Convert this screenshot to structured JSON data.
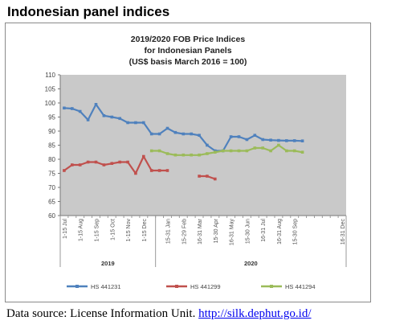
{
  "heading": "Indonesian panel indices",
  "source": {
    "prefix": "Data source: License Information Unit. ",
    "link_text": "http://silk.dephut.go.id/"
  },
  "chart_data": {
    "type": "line",
    "title": [
      "2019/2020 FOB Price Indices",
      "for Indonesian Panels",
      "(US$ basis March 2016 = 100)"
    ],
    "ylim": [
      60,
      110
    ],
    "yticks": [
      60,
      65,
      70,
      75,
      80,
      85,
      90,
      95,
      100,
      105,
      110
    ],
    "grid": false,
    "legend_position": "bottom",
    "plot_background": "#c9c9c9",
    "categories": [
      "1-15 Jul",
      "16-31 Jul",
      "1-15 Aug",
      "16-31 Aug",
      "1-15 Sep",
      "16-30 Sep",
      "1-15 Oct",
      "16-31 Oct",
      "1-15 Nov",
      "16-30 Nov",
      "1-15 Dec",
      "16-31 Dec",
      "1-15 Jan",
      "16-31 Jan",
      "1-15 Feb",
      "16-29 Feb",
      "1-15 Mar",
      "16-31 Mar",
      "1-15 Apr",
      "16-30 Apr",
      "1-15 May",
      "16-31 May",
      "1-15 Jun",
      "16-30 Jun",
      "1-15 Jul",
      "16-31 Jul",
      "1-15 Aug",
      "16-31 Aug",
      "1-15 Sep",
      "16-30 Sep",
      "1-15 Oct",
      "16-31 Oct",
      "1-15 Nov",
      "16-30 Nov",
      "1-15 Dec",
      "16-31 Dec"
    ],
    "tick_labels": [
      "1-15 Jul",
      "1-15 Aug",
      "1-15 Sep",
      "1-15 Oct",
      "1-15 Nov",
      "1-15 Dec",
      "15-31 Jan",
      "15-29 Feb",
      "16-31 Mar",
      "15-30 Apr",
      "16-31 May",
      "15-30 Jun",
      "16-31 Jul",
      "16-31 Aug",
      "15-30 Sep",
      "16-31 Dec"
    ],
    "tick_label_index": [
      0,
      2,
      4,
      6,
      8,
      10,
      13,
      15,
      17,
      19,
      21,
      23,
      25,
      27,
      29,
      35
    ],
    "year_labels": [
      {
        "text": "2019",
        "from": 0,
        "to": 11
      },
      {
        "text": "2020",
        "from": 12,
        "to": 35
      }
    ],
    "series": [
      {
        "name": "HS 441231",
        "color": "#4f81bd",
        "values": [
          98.2,
          98,
          97,
          94,
          99.5,
          95.5,
          95,
          94.5,
          93,
          93,
          93,
          89,
          89,
          91,
          89.5,
          89,
          89,
          88.5,
          85,
          83,
          83,
          88,
          88,
          87,
          88.5,
          87,
          86.8,
          86.7,
          86.6,
          86.6,
          86.5,
          null,
          null,
          null,
          null,
          null
        ]
      },
      {
        "name": "HS 441299",
        "color": "#c0504d",
        "values": [
          76,
          78,
          78,
          79,
          79,
          78,
          78.5,
          79,
          79,
          75,
          81,
          76,
          76,
          76,
          null,
          null,
          null,
          74,
          74,
          73,
          null,
          null,
          null,
          null,
          null,
          null,
          null,
          null,
          null,
          null,
          null,
          null,
          null,
          null,
          null,
          null
        ]
      },
      {
        "name": "HS 441294",
        "color": "#9bbb59",
        "values": [
          null,
          null,
          null,
          null,
          null,
          null,
          null,
          null,
          null,
          null,
          null,
          83,
          83,
          82,
          81.5,
          81.5,
          81.5,
          81.5,
          82,
          82.5,
          83,
          83,
          83,
          83,
          84,
          84,
          83,
          85,
          83,
          83,
          82.5,
          null,
          null,
          null,
          null,
          null
        ]
      }
    ]
  }
}
